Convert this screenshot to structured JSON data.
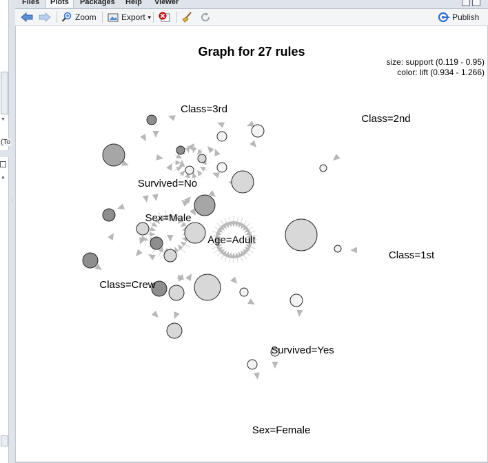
{
  "tabs": [
    {
      "label": "Files"
    },
    {
      "label": "Plots"
    },
    {
      "label": "Packages"
    },
    {
      "label": "Help"
    },
    {
      "label": "Viewer"
    }
  ],
  "toolbar": {
    "zoom_label": "Zoom",
    "export_label": "Export",
    "publish_label": "Publish"
  },
  "left_pane": {
    "truncated_label": "(To"
  },
  "plot": {
    "title": "Graph for 27 rules",
    "legend_size": "size: support (0.119 - 0.95)",
    "legend_color": "color: lift (0.934 - 1.266)",
    "item_labels": [
      "Class=3rd",
      "Class=2nd",
      "Survived=No",
      "Sex=Male",
      "Age=Adult",
      "Class=1st",
      "Class=Crew",
      "Survived=Yes",
      "Sex=Female"
    ]
  },
  "colors": {
    "accent": "#2f6fd0",
    "node_dark": "#8e8e8e",
    "node_mid": "#a6a6a6",
    "node_light": "#d8d8d8",
    "node_white": "#f3f3f3",
    "edge": "#b8b8b8"
  }
}
